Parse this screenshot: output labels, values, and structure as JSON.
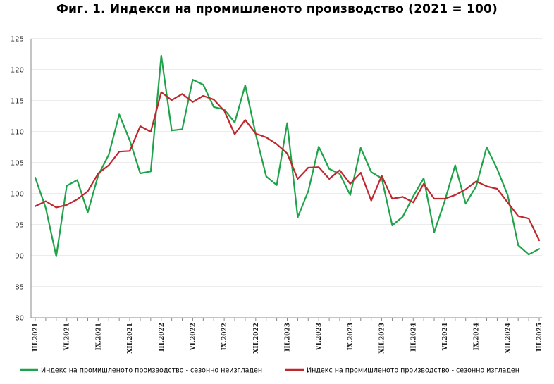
{
  "chart_data": {
    "type": "line",
    "title": "Фиг. 1. Индекси на промишленото производство (2021 = 100)",
    "xlabel": "",
    "ylabel": "",
    "ylim": [
      80,
      125
    ],
    "yticks": [
      80,
      85,
      90,
      95,
      100,
      105,
      110,
      115,
      120,
      125
    ],
    "grid": true,
    "legend_position": "bottom",
    "x": [
      "III.2021",
      "IV.2021",
      "V.2021",
      "VI.2021",
      "VII.2021",
      "VIII.2021",
      "IX.2021",
      "X.2021",
      "XI.2021",
      "XII.2021",
      "I.2022",
      "II.2022",
      "III.2022",
      "IV.2022",
      "V.2022",
      "VI.2022",
      "VII.2022",
      "VIII.2022",
      "IX.2022",
      "X.2022",
      "XI.2022",
      "XII.2022",
      "I.2023",
      "II.2023",
      "III.2023",
      "IV.2023",
      "V.2023",
      "VI.2023",
      "VII.2023",
      "VIII.2023",
      "IX.2023",
      "X.2023",
      "XI.2023",
      "XII.2023",
      "I.2024",
      "II.2024",
      "III.2024",
      "IV.2024",
      "V.2024",
      "VI.2024",
      "VII.2024",
      "VIII.2024",
      "IX.2024",
      "X.2024",
      "XI.2024",
      "XII.2024",
      "I.2025",
      "II.2025",
      "III.2025"
    ],
    "x_tick_labels": [
      "III.2021",
      "VI.2021",
      "IX.2021",
      "XII.2021",
      "III.2022",
      "VI.2022",
      "IX.2022",
      "XII.2022",
      "III.2023",
      "VI.2023",
      "IX.2023",
      "XII.2023",
      "III.2024",
      "VI.2024",
      "IX.2024",
      "XII.2024",
      "III.2025"
    ],
    "series": [
      {
        "name": "Индекс на промишленото производство - сезонно  неизгладен",
        "color": "#1fa34a",
        "values": [
          102.6,
          97.7,
          89.9,
          101.3,
          102.2,
          97.0,
          103.0,
          106.3,
          112.8,
          108.6,
          103.3,
          103.6,
          122.3,
          110.2,
          110.4,
          118.4,
          117.6,
          114.0,
          113.6,
          111.5,
          117.5,
          109.6,
          102.8,
          101.4,
          111.4,
          96.2,
          100.4,
          107.6,
          104.0,
          103.2,
          99.8,
          107.4,
          103.5,
          102.5,
          94.9,
          96.3,
          99.6,
          102.5,
          93.8,
          98.8,
          104.6,
          98.4,
          101.2,
          107.5,
          104.0,
          99.8,
          91.7,
          90.2,
          91.1
        ]
      },
      {
        "name": "Индекс на промишленото производство - сезонно изгладен",
        "color": "#c0272d",
        "values": [
          98.0,
          98.8,
          97.8,
          98.2,
          99.1,
          100.4,
          103.3,
          104.6,
          106.8,
          106.9,
          110.9,
          110.0,
          116.4,
          115.1,
          116.1,
          114.8,
          115.8,
          115.2,
          113.4,
          109.6,
          111.9,
          109.7,
          109.1,
          108.0,
          106.5,
          102.4,
          104.2,
          104.3,
          102.4,
          103.8,
          101.6,
          103.4,
          98.9,
          102.9,
          99.2,
          99.5,
          98.6,
          101.6,
          99.2,
          99.2,
          99.8,
          100.7,
          102.0,
          101.2,
          100.8,
          98.6,
          96.4,
          96.0,
          92.5
        ]
      }
    ]
  }
}
